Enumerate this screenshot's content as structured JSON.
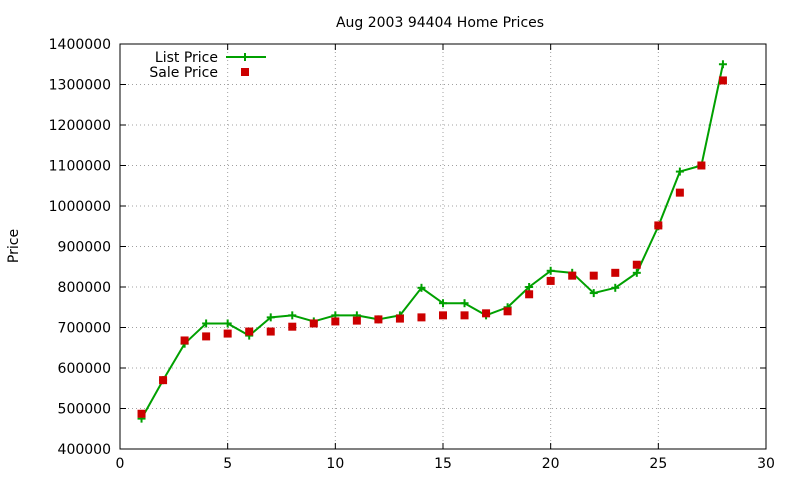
{
  "chart_data": {
    "type": "line",
    "title": "Aug 2003 94404 Home Prices",
    "xlabel": "",
    "ylabel": "Price",
    "xlim": [
      0,
      30
    ],
    "ylim": [
      400000,
      1400000
    ],
    "x_ticks": [
      0,
      5,
      10,
      15,
      20,
      25,
      30
    ],
    "y_ticks": [
      400000,
      500000,
      600000,
      700000,
      800000,
      900000,
      1000000,
      1100000,
      1200000,
      1300000,
      1400000
    ],
    "grid": true,
    "legend_position": "top-left",
    "series": [
      {
        "name": "List Price",
        "style": "lines+points",
        "color": "#00a000",
        "marker": "plus",
        "x": [
          1,
          2,
          3,
          4,
          5,
          6,
          7,
          8,
          9,
          10,
          11,
          12,
          13,
          14,
          15,
          16,
          17,
          18,
          19,
          20,
          21,
          22,
          23,
          24,
          25,
          26,
          27,
          28
        ],
        "y": [
          475000,
          570000,
          660000,
          710000,
          710000,
          680000,
          725000,
          730000,
          715000,
          730000,
          730000,
          720000,
          730000,
          798000,
          760000,
          760000,
          730000,
          750000,
          800000,
          840000,
          835000,
          785000,
          798000,
          835000,
          950000,
          1085000,
          1100000,
          1350000
        ]
      },
      {
        "name": "Sale Price",
        "style": "points",
        "color": "#cc0000",
        "marker": "square",
        "x": [
          1,
          2,
          3,
          4,
          5,
          6,
          7,
          8,
          9,
          10,
          11,
          12,
          13,
          14,
          15,
          16,
          17,
          18,
          19,
          20,
          21,
          22,
          23,
          24,
          25,
          26,
          27,
          28
        ],
        "y": [
          487000,
          570000,
          668000,
          678000,
          685000,
          690000,
          690000,
          702000,
          710000,
          715000,
          717000,
          720000,
          722000,
          725000,
          730000,
          730000,
          735000,
          740000,
          782000,
          815000,
          828000,
          828000,
          835000,
          855000,
          952000,
          1033000,
          1100000,
          1310000
        ]
      }
    ]
  }
}
